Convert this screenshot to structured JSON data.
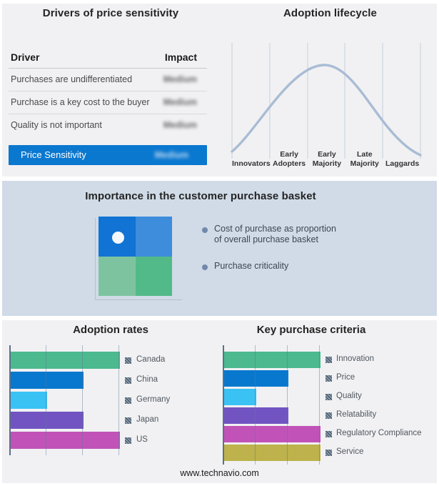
{
  "footer": {
    "url": "www.technavio.com"
  },
  "drivers_panel": {
    "title": "Drivers of price sensitivity",
    "columns": {
      "driver": "Driver",
      "impact": "Impact"
    },
    "rows": [
      {
        "driver": "Purchases are undifferentiated",
        "impact": "Medium",
        "impact_redacted": true
      },
      {
        "driver": "Purchase is a key cost to the buyer",
        "impact": "Medium",
        "impact_redacted": true
      },
      {
        "driver": "Quality is not important",
        "impact": "Medium",
        "impact_redacted": true
      }
    ],
    "summary_row": {
      "driver": "Price Sensitivity",
      "impact": "Medium",
      "impact_redacted": true,
      "highlight_color": "#0b78cf"
    }
  },
  "lifecycle_panel": {
    "title": "Adoption lifecycle",
    "stages": [
      [
        "Innovators"
      ],
      [
        "Early",
        "Adopters"
      ],
      [
        "Early",
        "Majority"
      ],
      [
        "Late",
        "Majority"
      ],
      [
        "Laggards"
      ]
    ],
    "curve_color": "#a9bcd4",
    "gridline_color": "#c5cfdd"
  },
  "basket_panel": {
    "title": "Importance in the customer purchase basket",
    "bullets": [
      "Cost of purchase as proportion of overall purchase basket",
      "Purchase criticality"
    ],
    "quadrant": {
      "tl": "#1173d3",
      "tr": "#3e8cdc",
      "bl": "#7dc3a0",
      "br": "#52ba88"
    },
    "marker_note": "white dot in top-left quadrant"
  },
  "chart_data": [
    {
      "type": "bar",
      "orientation": "horizontal",
      "title": "Adoption rates",
      "categories": [
        "Canada",
        "China",
        "Germany",
        "Japan",
        "US"
      ],
      "values": [
        3,
        2,
        1,
        2,
        3
      ],
      "xlim": [
        0,
        3
      ],
      "value_note": "relative units read from gridlines (3 = full scale)",
      "bar_colors": [
        "#4cb98f",
        "#0878ce",
        "#3ac2f5",
        "#7154c2",
        "#c153b8"
      ],
      "grid": true,
      "legend_position": "right"
    },
    {
      "type": "bar",
      "orientation": "horizontal",
      "title": "Key purchase criteria",
      "categories": [
        "Innovation",
        "Price",
        "Quality",
        "Relatability",
        "Regulatory Compliance",
        "Service"
      ],
      "values": [
        3,
        2,
        1,
        2,
        3,
        3
      ],
      "xlim": [
        0,
        3
      ],
      "value_note": "relative units read from gridlines (3 = full scale)",
      "bar_colors": [
        "#4cb98f",
        "#0878ce",
        "#3ac2f5",
        "#7154c2",
        "#c153b8",
        "#bdb24b"
      ],
      "grid": true,
      "legend_position": "right"
    },
    {
      "type": "line",
      "title": "Adoption lifecycle",
      "x_categories": [
        "Innovators",
        "Early Adopters",
        "Early Majority",
        "Late Majority",
        "Laggards"
      ],
      "description": "stylized bell curve over five adopter segments, no numeric axes; peak over Early Majority"
    }
  ]
}
